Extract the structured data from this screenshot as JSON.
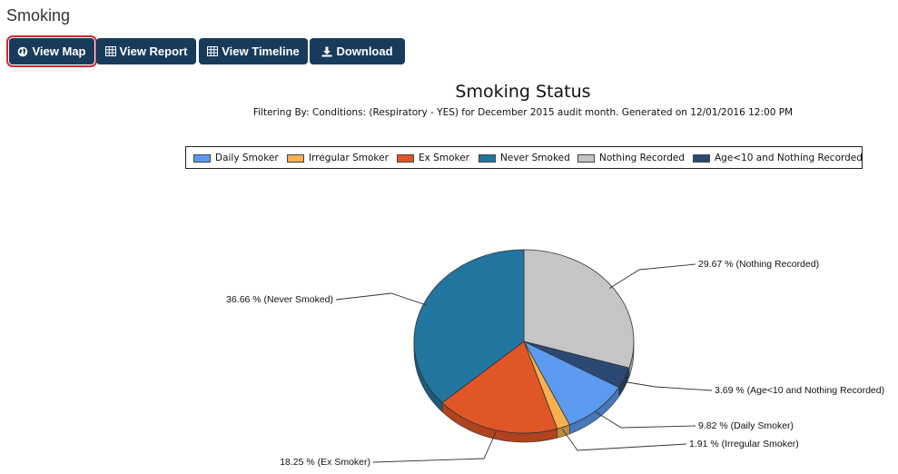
{
  "page": {
    "title": "Smoking"
  },
  "toolbar": {
    "buttons": [
      {
        "label": "View Map",
        "icon": "globe-icon",
        "active": true
      },
      {
        "label": "View Report",
        "icon": "table-icon",
        "active": false
      },
      {
        "label": "View Timeline",
        "icon": "table-icon",
        "active": false
      },
      {
        "label": "Download",
        "icon": "download-icon",
        "active": false
      }
    ]
  },
  "colors": {
    "button_bg": "#183b5c",
    "active_outline": "#d8272d"
  },
  "chart_data": {
    "type": "pie",
    "title": "Smoking Status",
    "subtitle": "Filtering By: Conditions: (Respiratory - YES) for December 2015 audit month. Generated on 12/01/2016 12:00 PM",
    "legend_placement": "top",
    "series": [
      {
        "name": "Daily Smoker",
        "value": 9.82,
        "label": "9.82 % (Daily Smoker)",
        "color": "#5a9bf0"
      },
      {
        "name": "Irregular Smoker",
        "value": 1.91,
        "label": "1.91 % (Irregular Smoker)",
        "color": "#f6b14e"
      },
      {
        "name": "Ex Smoker",
        "value": 18.25,
        "label": "18.25 % (Ex Smoker)",
        "color": "#e15627"
      },
      {
        "name": "Never Smoked",
        "value": 36.66,
        "label": "36.66 % (Never Smoked)",
        "color": "#21759f"
      },
      {
        "name": "Nothing Recorded",
        "value": 29.67,
        "label": "29.67 % (Nothing Recorded)",
        "color": "#c5c5c5"
      },
      {
        "name": "Age<10 and Nothing Recorded",
        "value": 3.69,
        "label": "3.69 % (Age<10 and Nothing Recorded)",
        "color": "#2a4a74"
      }
    ],
    "slice_order_clockwise_from_top": [
      "Nothing Recorded",
      "Age<10 and Nothing Recorded",
      "Daily Smoker",
      "Irregular Smoker",
      "Ex Smoker",
      "Never Smoked"
    ]
  }
}
